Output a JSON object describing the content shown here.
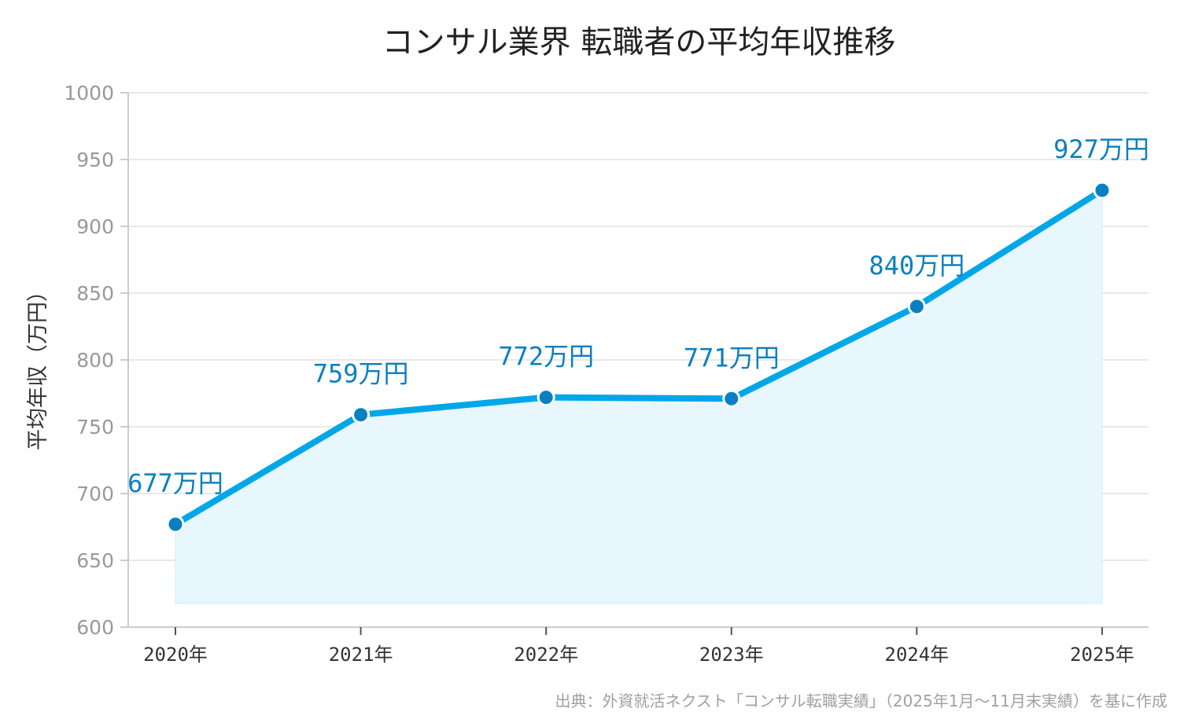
{
  "chart_data": {
    "type": "line",
    "title": "コンサル業界 転職者の平均年収推移",
    "xlabel": "",
    "ylabel": "平均年収（万円）",
    "categories": [
      "2020年",
      "2021年",
      "2022年",
      "2023年",
      "2024年",
      "2025年"
    ],
    "series": [
      {
        "values": [
          677,
          759,
          772,
          771,
          840,
          927
        ],
        "data_labels": [
          "677万円",
          "759万円",
          "772万円",
          "771万円",
          "840万円",
          "927万円"
        ]
      }
    ],
    "ylim": [
      600,
      1000
    ],
    "yticks": [
      600,
      650,
      700,
      750,
      800,
      850,
      900,
      950,
      1000
    ],
    "ytick_labels": [
      "600",
      "650",
      "700",
      "750",
      "800",
      "850",
      "900",
      "950",
      "1000"
    ],
    "grid": true,
    "legend": "none",
    "area_fill": true,
    "colors": {
      "line": "#00a7e8",
      "marker": "#0a80c2",
      "area": "#e8f6fd",
      "data_label": "#0a7fc0"
    },
    "source": "出典：外資就活ネクスト「コンサル転職実績」（2025年1月〜11月末実績）を基に作成"
  }
}
